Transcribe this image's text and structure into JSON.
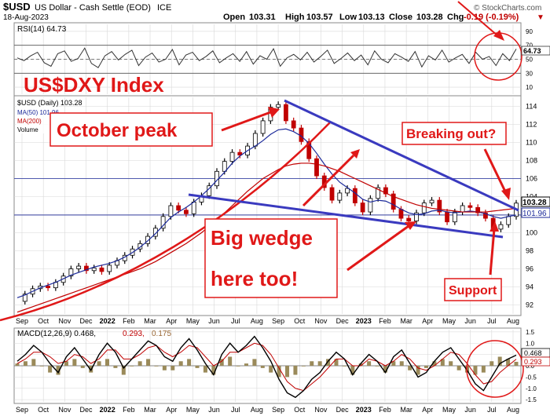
{
  "header": {
    "symbol": "$USD",
    "description": "US Dollar - Cash Settle (EOD)",
    "exchange": "ICE",
    "date": "18-Aug-2023",
    "open_label": "Open",
    "open": "103.31",
    "high_label": "High",
    "high": "103.57",
    "low_label": "Low",
    "low": "103.13",
    "close_label": "Close",
    "close": "103.28",
    "chg_label": "Chg",
    "chg": "-0.19 (-0.19%)",
    "chg_arrow": "▼",
    "watermark": "© StockCharts.com"
  },
  "colors": {
    "up_bar": "#000000",
    "down_bar": "#c00000",
    "ma50": "#1c2a9a",
    "ma200": "#c00000",
    "annotation": "#e01818",
    "trendline": "#3a3abf",
    "grid": "#d8d8d8"
  },
  "annotations": {
    "title": "US$DXY Index",
    "october_peak": "October peak",
    "breaking_out": "Breaking out?",
    "big_wedge_line1": "Big wedge",
    "big_wedge_line2": "here too!",
    "support": "Support"
  },
  "chart_data": [
    {
      "type": "line",
      "panel": "RSI",
      "legend": "RSI(14) 64.73",
      "last_value_label": "64.73",
      "y_ticks": [
        "90",
        "70",
        "50",
        "30",
        "10"
      ],
      "ylim": [
        0,
        100
      ],
      "series": [
        {
          "name": "RSI(14)",
          "values": [
            52,
            48,
            55,
            60,
            45,
            40,
            58,
            62,
            47,
            51,
            66,
            44,
            38,
            55,
            61,
            49,
            57,
            63,
            41,
            53,
            59,
            46,
            50,
            64,
            42,
            56,
            60,
            48,
            54,
            62,
            45,
            52,
            58,
            47,
            61,
            43,
            55,
            50,
            65,
            40,
            52,
            57,
            49,
            60,
            46,
            54,
            63,
            44,
            51,
            59,
            48,
            56,
            42,
            62,
            50,
            45,
            58,
            53,
            47,
            61,
            39,
            55,
            49,
            63,
            46,
            52,
            57,
            44,
            60,
            50,
            54,
            41,
            58,
            48,
            64.73
          ]
        }
      ],
      "horizontal_lines": [
        70,
        50,
        30
      ]
    },
    {
      "type": "line",
      "panel": "Price",
      "legend": [
        "$USD (Daily) 103.28",
        "MA(50) 101.96",
        "MA(200)",
        "Volume"
      ],
      "x_ticks": [
        "Sep",
        "Oct",
        "Nov",
        "Dec",
        "2022",
        "Feb",
        "Mar",
        "Apr",
        "May",
        "Jun",
        "Jul",
        "Aug",
        "Sep",
        "Oct",
        "Nov",
        "Dec",
        "2023",
        "Feb",
        "Mar",
        "Apr",
        "May",
        "Jun",
        "Jul",
        "Aug"
      ],
      "y_ticks": [
        "114",
        "112",
        "110",
        "108",
        "106",
        "104",
        "102",
        "100",
        "98",
        "96",
        "94",
        "92"
      ],
      "ylim": [
        91,
        115
      ],
      "last_price_label": "103.28",
      "ma50_label": "101.96",
      "series": [
        {
          "name": "$USD (Daily)",
          "values": [
            92.4,
            93.2,
            93.8,
            94.1,
            93.9,
            94.5,
            95.2,
            96.0,
            96.3,
            95.8,
            96.1,
            95.7,
            96.4,
            96.9,
            97.5,
            98.2,
            98.8,
            99.6,
            100.5,
            101.8,
            103.0,
            102.5,
            102.1,
            103.4,
            104.1,
            105.2,
            106.8,
            107.9,
            108.9,
            108.6,
            109.6,
            111.0,
            112.4,
            113.9,
            114.2,
            112.4,
            111.6,
            110.1,
            108.2,
            106.3,
            105.0,
            103.6,
            104.4,
            104.9,
            103.3,
            102.3,
            103.8,
            105.0,
            104.3,
            102.6,
            101.6,
            101.3,
            102.2,
            103.3,
            103.6,
            102.3,
            101.2,
            102.3,
            103.0,
            102.8,
            102.2,
            101.6,
            100.4,
            100.9,
            101.8,
            103.28
          ]
        },
        {
          "name": "MA(50)",
          "values": [
            92.8,
            93.1,
            93.5,
            93.9,
            94.2,
            94.5,
            94.9,
            95.3,
            95.6,
            95.9,
            96.2,
            96.4,
            96.6,
            96.9,
            97.3,
            97.8,
            98.4,
            99.1,
            99.9,
            100.8,
            101.7,
            102.3,
            102.8,
            103.4,
            104.1,
            104.9,
            105.8,
            106.7,
            107.7,
            108.5,
            109.1,
            109.6,
            110.2,
            110.9,
            111.4,
            111.5,
            111.2,
            110.7,
            109.9,
            108.8,
            107.6,
            106.5,
            105.6,
            105.0,
            104.4,
            103.7,
            103.4,
            103.6,
            103.5,
            103.1,
            102.6,
            102.2,
            102.0,
            102.1,
            102.4,
            102.5,
            102.3,
            102.2,
            102.3,
            102.4,
            102.3,
            102.1,
            101.8,
            101.6,
            101.8,
            101.96
          ]
        },
        {
          "name": "MA(200)",
          "values": [
            91.2,
            91.5,
            91.8,
            92.1,
            92.4,
            92.7,
            93.0,
            93.3,
            93.6,
            93.9,
            94.2,
            94.5,
            94.8,
            95.1,
            95.4,
            95.7,
            96.0,
            96.4,
            96.8,
            97.3,
            97.8,
            98.3,
            98.8,
            99.4,
            100.0,
            100.7,
            101.4,
            102.2,
            103.0,
            103.8,
            104.6,
            105.3,
            106.0,
            106.5,
            107.0,
            107.4,
            107.6,
            107.7,
            107.7,
            107.6,
            107.4,
            107.1,
            106.8,
            106.4,
            106.0,
            105.6,
            105.2,
            104.8,
            104.4,
            104.0,
            103.7,
            103.4,
            103.1,
            102.9,
            102.7,
            102.6,
            102.5,
            102.4,
            102.3,
            102.3,
            102.3,
            102.3,
            102.4,
            102.5,
            102.6,
            102.7
          ]
        }
      ],
      "horizontal_lines": [
        106,
        101.96
      ]
    },
    {
      "type": "line",
      "panel": "MACD",
      "legend": [
        "MACD(12,26,9) 0.468,",
        "0.293,",
        "0.175"
      ],
      "x_ticks": [
        "Sep",
        "Oct",
        "Nov",
        "Dec",
        "2022",
        "Feb",
        "Mar",
        "Apr",
        "May",
        "Jun",
        "Jul",
        "Aug",
        "Sep",
        "Oct",
        "Nov",
        "Dec",
        "2023",
        "Feb",
        "Mar",
        "Apr",
        "May",
        "Jun",
        "Jul",
        "Aug"
      ],
      "y_ticks": [
        "1.5",
        "1.0",
        "0.5",
        "0.0",
        "-0.5",
        "-1.0",
        "-1.5"
      ],
      "ylim": [
        -1.6,
        1.6
      ],
      "last_value_labels": [
        "0.468",
        "0.293"
      ],
      "series": [
        {
          "name": "MACD",
          "values": [
            0.2,
            0.5,
            0.9,
            0.6,
            0.1,
            -0.3,
            0.4,
            0.8,
            0.3,
            -0.2,
            0.5,
            1.0,
            0.6,
            -0.1,
            0.3,
            0.7,
            1.1,
            0.9,
            0.4,
            0.2,
            0.8,
            1.2,
            0.7,
            0.1,
            -0.4,
            0.5,
            1.0,
            0.6,
            0.9,
            1.3,
            0.8,
            0.2,
            -0.6,
            -1.2,
            -1.4,
            -1.1,
            -0.6,
            -0.3,
            0.2,
            0.6,
            0.3,
            -0.4,
            0.1,
            0.5,
            0.2,
            -0.3,
            0.4,
            0.7,
            0.1,
            -0.5,
            -0.3,
            0.2,
            0.6,
            0.8,
            0.3,
            -0.2,
            -0.8,
            -1.1,
            -0.5,
            0.1,
            0.3,
            0.468
          ]
        },
        {
          "name": "Signal",
          "values": [
            0.1,
            0.3,
            0.6,
            0.6,
            0.4,
            0.1,
            0.2,
            0.5,
            0.4,
            0.1,
            0.3,
            0.7,
            0.7,
            0.3,
            0.3,
            0.5,
            0.8,
            0.9,
            0.6,
            0.4,
            0.6,
            0.9,
            0.8,
            0.4,
            0.0,
            0.2,
            0.6,
            0.6,
            0.8,
            1.0,
            0.9,
            0.5,
            -0.1,
            -0.7,
            -1.0,
            -1.1,
            -0.8,
            -0.5,
            -0.1,
            0.3,
            0.3,
            0.0,
            0.0,
            0.3,
            0.2,
            0.0,
            0.2,
            0.5,
            0.3,
            -0.1,
            -0.2,
            0.0,
            0.3,
            0.6,
            0.5,
            0.1,
            -0.4,
            -0.8,
            -0.7,
            -0.3,
            0.0,
            0.293
          ]
        }
      ],
      "horizontal_lines": [
        0
      ]
    }
  ]
}
